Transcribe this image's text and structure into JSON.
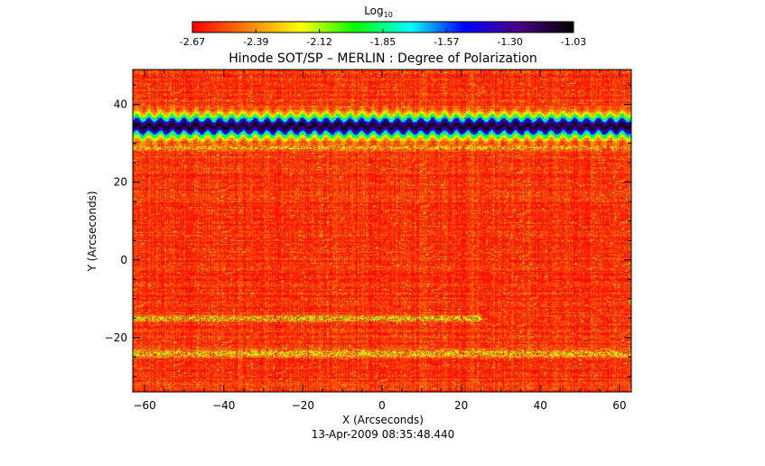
{
  "chart_data": {
    "type": "heatmap",
    "title": "Hinode SOT/SP – MERLIN : Degree of Polarization",
    "xlabel": "X (Arcseconds)",
    "ylabel": "Y (Arcseconds)",
    "timestamp": "13-Apr-2009 08:35:48.440",
    "xlim": [
      -63,
      63
    ],
    "ylim": [
      -34,
      49
    ],
    "x_ticks": [
      -60,
      -40,
      -20,
      0,
      20,
      40,
      60
    ],
    "y_ticks": [
      -20,
      0,
      20,
      40
    ],
    "grid": false,
    "colorbar": {
      "label_base": "Log",
      "label_sub": "10",
      "position": "top",
      "min": -2.67,
      "max": -1.03,
      "ticks": [
        "-2.67",
        "-2.39",
        "-2.12",
        "-1.85",
        "-1.57",
        "-1.30",
        "-1.03"
      ],
      "colormap": [
        "#ff0000",
        "#ff7f00",
        "#ffff00",
        "#00ff00",
        "#00ffff",
        "#0000ff",
        "#4b0082",
        "#000000"
      ]
    },
    "background_value": -2.6,
    "features": [
      {
        "kind": "horizontal-band",
        "y_center": 34.5,
        "half_width": 3.0,
        "peak_value": -1.1,
        "x_from": -63,
        "x_to": 63
      },
      {
        "kind": "faint-horizontal-band",
        "y_center": -15.0,
        "half_width": 0.8,
        "peak_value": -2.1,
        "x_from": -63,
        "x_to": 25
      },
      {
        "kind": "faint-horizontal-band",
        "y_center": -24.0,
        "half_width": 1.2,
        "peak_value": -2.15,
        "x_from": -63,
        "x_to": 63
      },
      {
        "kind": "faint-horizontal-band",
        "y_center": 29.0,
        "half_width": 0.8,
        "peak_value": -2.2,
        "x_from": -63,
        "x_to": 63
      },
      {
        "kind": "vertical-seam",
        "x_center": 23.0,
        "half_width": 1.5,
        "peak_value": -2.4
      }
    ]
  }
}
